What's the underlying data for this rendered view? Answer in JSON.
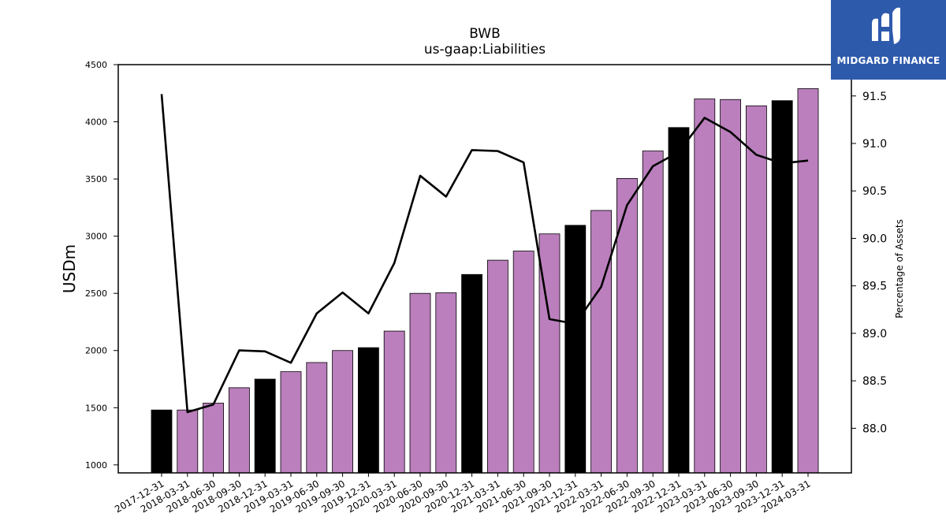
{
  "brand": {
    "name": "MIDGARD FINANCE",
    "bg_color": "#2e5aac"
  },
  "chart_data": {
    "type": "bar",
    "title": "BWB",
    "subtitle": "us-gaap:Liabilities",
    "ylabel": "USDm",
    "y2label": "Percentage of Assets",
    "ylim": [
      930,
      4500
    ],
    "y2lim": [
      87.53,
      91.83
    ],
    "yticks": [
      1000,
      1500,
      2000,
      2500,
      3000,
      3500,
      4000,
      4500
    ],
    "y2ticks": [
      "88.0",
      "88.5",
      "89.0",
      "89.5",
      "90.0",
      "90.5",
      "91.0",
      "91.5"
    ],
    "grid": false,
    "categories": [
      "2017-12-31",
      "2018-03-31",
      "2018-06-30",
      "2018-09-30",
      "2018-12-31",
      "2019-03-31",
      "2019-06-30",
      "2019-09-30",
      "2019-12-31",
      "2020-03-31",
      "2020-06-30",
      "2020-09-30",
      "2020-12-31",
      "2021-03-31",
      "2021-06-30",
      "2021-09-30",
      "2021-12-31",
      "2022-03-31",
      "2022-06-30",
      "2022-09-30",
      "2022-12-31",
      "2023-03-31",
      "2023-06-30",
      "2023-09-30",
      "2023-12-31",
      "2024-03-31"
    ],
    "series": [
      {
        "type": "bar",
        "values": [
          1480,
          1480,
          1540,
          1675,
          1750,
          1815,
          1895,
          2000,
          2025,
          2170,
          2500,
          2505,
          2665,
          2790,
          2870,
          3020,
          3095,
          3225,
          3505,
          3745,
          3950,
          4200,
          4195,
          4140,
          4185,
          4290
        ],
        "colors": [
          "#000000",
          "#bb7fbd",
          "#bb7fbd",
          "#bb7fbd",
          "#000000",
          "#bb7fbd",
          "#bb7fbd",
          "#bb7fbd",
          "#000000",
          "#bb7fbd",
          "#bb7fbd",
          "#bb7fbd",
          "#000000",
          "#bb7fbd",
          "#bb7fbd",
          "#bb7fbd",
          "#000000",
          "#bb7fbd",
          "#bb7fbd",
          "#bb7fbd",
          "#000000",
          "#bb7fbd",
          "#bb7fbd",
          "#bb7fbd",
          "#000000",
          "#bb7fbd"
        ]
      },
      {
        "type": "line",
        "axis": "right",
        "color": "#000000",
        "values": [
          91.52,
          88.17,
          88.25,
          88.82,
          88.81,
          88.69,
          89.21,
          89.43,
          89.21,
          89.74,
          90.66,
          90.44,
          90.93,
          90.92,
          90.8,
          89.15,
          89.1,
          89.49,
          90.35,
          90.76,
          90.91,
          91.27,
          91.12,
          90.88,
          90.79,
          90.82
        ]
      }
    ]
  }
}
